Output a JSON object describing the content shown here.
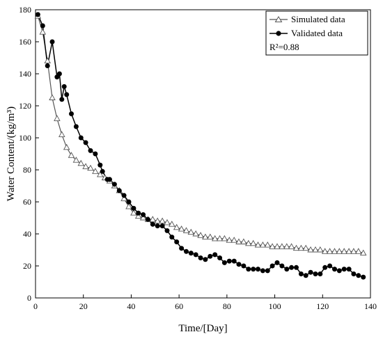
{
  "chart_data": {
    "type": "line",
    "xlabel": "Time/[Day]",
    "ylabel": "Water Content/(kg/m³)",
    "xlim": [
      0,
      140
    ],
    "ylim": [
      0,
      180
    ],
    "xticks": [
      0,
      20,
      40,
      60,
      80,
      100,
      120,
      140
    ],
    "yticks": [
      0,
      20,
      40,
      60,
      80,
      100,
      120,
      140,
      160,
      180
    ],
    "grid": false,
    "legend_position": "top-right",
    "annotation": "R²=0.88",
    "series": [
      {
        "name": "Simulated data",
        "marker": "open-triangle",
        "color": "#555555",
        "x": [
          1,
          3,
          5,
          7,
          9,
          11,
          13,
          15,
          17,
          19,
          21,
          23,
          25,
          27,
          29,
          31,
          33,
          35,
          37,
          39,
          41,
          43,
          45,
          47,
          49,
          51,
          53,
          55,
          57,
          59,
          61,
          63,
          65,
          67,
          69,
          71,
          73,
          75,
          77,
          79,
          81,
          83,
          85,
          87,
          89,
          91,
          93,
          95,
          97,
          99,
          101,
          103,
          105,
          107,
          109,
          111,
          113,
          115,
          117,
          119,
          121,
          123,
          125,
          127,
          129,
          131,
          133,
          135,
          137
        ],
        "y": [
          176,
          166,
          148,
          125,
          112,
          102,
          94,
          89,
          86,
          84,
          82,
          81,
          79,
          77,
          75,
          73,
          70,
          67,
          62,
          57,
          53,
          51,
          50,
          49,
          49,
          48,
          48,
          47,
          46,
          44,
          43,
          42,
          41,
          40,
          39,
          38,
          38,
          37,
          37,
          37,
          36,
          36,
          35,
          35,
          34,
          34,
          33,
          33,
          33,
          32,
          32,
          32,
          32,
          32,
          31,
          31,
          31,
          30,
          30,
          30,
          29,
          29,
          29,
          29,
          29,
          29,
          29,
          29,
          28
        ]
      },
      {
        "name": "Validated data",
        "marker": "filled-circle",
        "color": "#000000",
        "x": [
          1,
          3,
          5,
          7,
          9,
          10,
          11,
          12,
          13,
          15,
          17,
          19,
          21,
          23,
          25,
          27,
          28,
          30,
          31,
          33,
          35,
          37,
          39,
          41,
          43,
          45,
          47,
          49,
          51,
          53,
          55,
          57,
          59,
          61,
          63,
          65,
          67,
          69,
          71,
          73,
          75,
          77,
          79,
          81,
          83,
          85,
          87,
          89,
          91,
          93,
          95,
          97,
          99,
          101,
          103,
          105,
          107,
          109,
          111,
          113,
          115,
          117,
          119,
          121,
          123,
          125,
          127,
          129,
          131,
          133,
          135,
          137
        ],
        "y": [
          177,
          170,
          145,
          160,
          138,
          140,
          124,
          132,
          127,
          115,
          107,
          100,
          97,
          92,
          90,
          83,
          79,
          74,
          74,
          71,
          67,
          64,
          60,
          56,
          53,
          52,
          49,
          46,
          45,
          45,
          42,
          38,
          35,
          31,
          29,
          28,
          27,
          25,
          24,
          26,
          27,
          25,
          22,
          23,
          23,
          21,
          20,
          18,
          18,
          18,
          17,
          17,
          20,
          22,
          20,
          18,
          19,
          19,
          15,
          14,
          16,
          15,
          15,
          19,
          20,
          18,
          17,
          18,
          18,
          15,
          14,
          13
        ]
      }
    ]
  }
}
